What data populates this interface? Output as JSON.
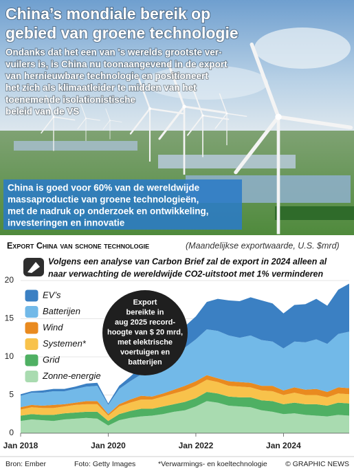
{
  "header": {
    "title": [
      "China’s mondiale bereik op",
      "gebied van groene technologie"
    ],
    "intro": [
      "Ondanks dat het een van 's werelds grootste ver-",
      "vuilers is, is China nu toonaangevend in de export",
      "van hernieuwbare technologie en positioneert",
      "het zich als klimaatleider te midden van het",
      "toenemende isolationistische",
      "beleid van de VS"
    ],
    "callout": [
      "China is goed voor 60% van de wereldwijde",
      "massaproductie van groene technologieën,",
      "met de nadruk op onderzoek en ontwikkeling,",
      "investeringen en innovatie"
    ]
  },
  "chart_data": {
    "type": "area",
    "title": "Export China van schone technologie",
    "subtitle": "(Maandelijkse exportwaarde, U.S. $mrd)",
    "note": [
      "Volgens een analyse van Carbon Brief zal de export in 2024 alleen al",
      "naar verwachting de wereldwijde CO2-uitstoot met 1% verminderen"
    ],
    "annotation": [
      "Export",
      "bereikte in",
      "aug 2025 record-",
      "hoogte van $ 20 mrd,",
      "met elektrische",
      "voertuigen en",
      "batterijen"
    ],
    "categories": [
      "Jan 2018",
      null,
      null,
      null,
      null,
      null,
      null,
      null,
      "Jan 2020",
      null,
      null,
      null,
      null,
      null,
      null,
      null,
      "Jan 2022",
      null,
      null,
      null,
      null,
      null,
      null,
      null,
      "Jan 2024",
      null,
      null,
      null,
      null,
      null,
      null
    ],
    "ylim": [
      0,
      20
    ],
    "yticks": [
      0,
      5,
      10,
      15,
      20
    ],
    "grid": true,
    "stacked": true,
    "series": [
      {
        "name": "Zonne-energie",
        "color": "#a9dbb0",
        "values": [
          1.6,
          1.8,
          1.7,
          1.6,
          1.8,
          1.9,
          2.0,
          1.9,
          1.0,
          1.7,
          2.0,
          2.2,
          2.3,
          2.5,
          2.8,
          3.0,
          3.5,
          4.2,
          4.0,
          3.6,
          3.5,
          3.4,
          3.0,
          2.8,
          2.5,
          2.6,
          2.4,
          2.3,
          2.2,
          2.4,
          2.3
        ]
      },
      {
        "name": "Grid",
        "color": "#4fb063",
        "values": [
          0.7,
          0.7,
          0.7,
          0.8,
          0.8,
          0.8,
          0.8,
          0.9,
          0.6,
          0.8,
          0.9,
          1.0,
          0.9,
          1.0,
          1.0,
          1.1,
          1.1,
          1.2,
          1.2,
          1.2,
          1.2,
          1.3,
          1.3,
          1.4,
          1.3,
          1.4,
          1.4,
          1.5,
          1.4,
          1.6,
          1.6
        ]
      },
      {
        "name": "Systemen*",
        "color": "#f8c24b",
        "values": [
          0.8,
          0.9,
          0.9,
          0.9,
          0.9,
          1.0,
          1.0,
          1.0,
          0.7,
          1.0,
          1.1,
          1.2,
          1.2,
          1.3,
          1.4,
          1.5,
          1.6,
          1.6,
          1.5,
          1.4,
          1.4,
          1.3,
          1.3,
          1.3,
          1.2,
          1.3,
          1.2,
          1.2,
          1.1,
          1.2,
          1.2
        ]
      },
      {
        "name": "Wind",
        "color": "#e98a1f",
        "values": [
          0.3,
          0.3,
          0.3,
          0.4,
          0.3,
          0.3,
          0.4,
          0.4,
          0.2,
          0.3,
          0.4,
          0.5,
          0.4,
          0.4,
          0.5,
          0.6,
          0.6,
          0.6,
          0.5,
          0.6,
          0.6,
          0.6,
          0.6,
          0.7,
          0.6,
          0.7,
          0.7,
          0.8,
          0.7,
          0.8,
          0.8
        ]
      },
      {
        "name": "Batterijen",
        "color": "#72b9e8",
        "values": [
          1.5,
          1.6,
          1.7,
          1.8,
          1.7,
          1.8,
          1.9,
          2.0,
          1.2,
          2.0,
          2.4,
          2.8,
          3.0,
          3.5,
          4.2,
          5.0,
          5.5,
          6.0,
          6.2,
          6.0,
          5.8,
          6.2,
          6.0,
          5.8,
          5.5,
          6.0,
          6.2,
          6.5,
          6.3,
          7.0,
          7.4
        ]
      },
      {
        "name": "EV’s",
        "color": "#3b80c3",
        "values": [
          0.2,
          0.2,
          0.3,
          0.3,
          0.3,
          0.3,
          0.4,
          0.4,
          0.2,
          0.4,
          0.6,
          1.0,
          1.2,
          1.6,
          2.2,
          2.8,
          3.0,
          3.6,
          4.2,
          4.6,
          4.8,
          5.0,
          5.2,
          5.0,
          4.6,
          4.8,
          5.0,
          5.3,
          5.0,
          5.8,
          6.3
        ]
      }
    ]
  },
  "footer": {
    "source": "Bron: Ember",
    "photo": "Foto: Getty Images",
    "footnote": "*Verwarmings- en koeltechnologie",
    "credit": "© GRAPHIC NEWS"
  }
}
